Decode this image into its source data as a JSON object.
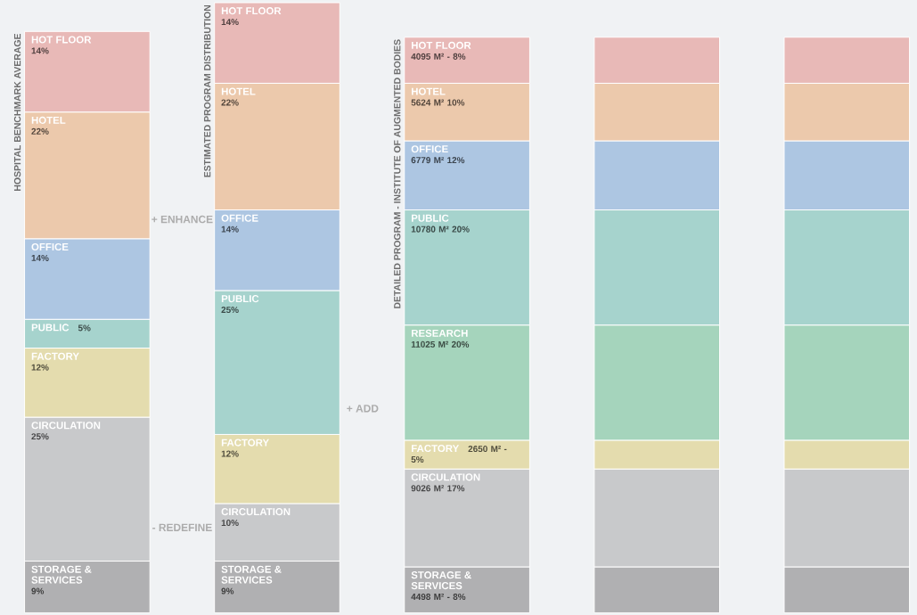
{
  "chart_data": {
    "type": "bar",
    "stacked": true,
    "categories": [
      "HOSPITAL BENCHMARK AVERAGE",
      "ESTIMATED PROGRAM DISTRIBUTION",
      "DETAILED PROGRAM - INSTITUTE OF AUGMENTED BODIES",
      null,
      null
    ],
    "series": [
      {
        "name": "STORAGE & SERVICES",
        "color": "#b0b0b2",
        "values": [
          9,
          9,
          8,
          8,
          8
        ],
        "value_labels": [
          "9%",
          "9%",
          "8%",
          null,
          null
        ]
      },
      {
        "name": "CIRCULATION",
        "color": "#c8c9cb",
        "values": [
          25,
          10,
          17,
          17,
          17
        ],
        "value_labels": [
          "25%",
          "10%",
          "9026 M² 17%",
          null,
          null
        ]
      },
      {
        "name": "FACTORY",
        "color": "#e4dcae",
        "values": [
          12,
          12,
          5,
          5,
          5
        ],
        "value_labels": [
          "12%",
          "12%",
          "5%",
          null,
          null
        ]
      },
      {
        "name": "RESEARCH",
        "color": "#a5d4bc",
        "values": [
          null,
          null,
          20,
          20,
          20
        ],
        "value_labels": [
          null,
          null,
          "11025 M² 20%",
          null,
          null
        ]
      },
      {
        "name": "PUBLIC",
        "color": "#a6d3cd",
        "values": [
          5,
          25,
          20,
          20,
          20
        ],
        "value_labels": [
          "5%",
          "25%",
          "10780 M² 20%",
          null,
          null
        ]
      },
      {
        "name": "OFFICE",
        "color": "#adc6e2",
        "values": [
          14,
          14,
          12,
          12,
          12
        ],
        "value_labels": [
          "14%",
          "14%",
          "6779 M² 12%",
          null,
          null
        ]
      },
      {
        "name": "HOTEL",
        "color": "#ecc9ac",
        "values": [
          22,
          22,
          10,
          10,
          10
        ],
        "value_labels": [
          "22%",
          "22%",
          "5624 M² 10%",
          null,
          null
        ]
      },
      {
        "name": "HOT FLOOR",
        "color": "#e8b9b7",
        "values": [
          14,
          14,
          8,
          8,
          8
        ],
        "value_labels": [
          "14%",
          "14%",
          "8%",
          null,
          null
        ]
      }
    ],
    "annotations": [
      "+ ENHANCE",
      "- REDEFINE",
      "+ ADD",
      "4095 M² -",
      "2650 M² -",
      "4498 M² -"
    ]
  }
}
